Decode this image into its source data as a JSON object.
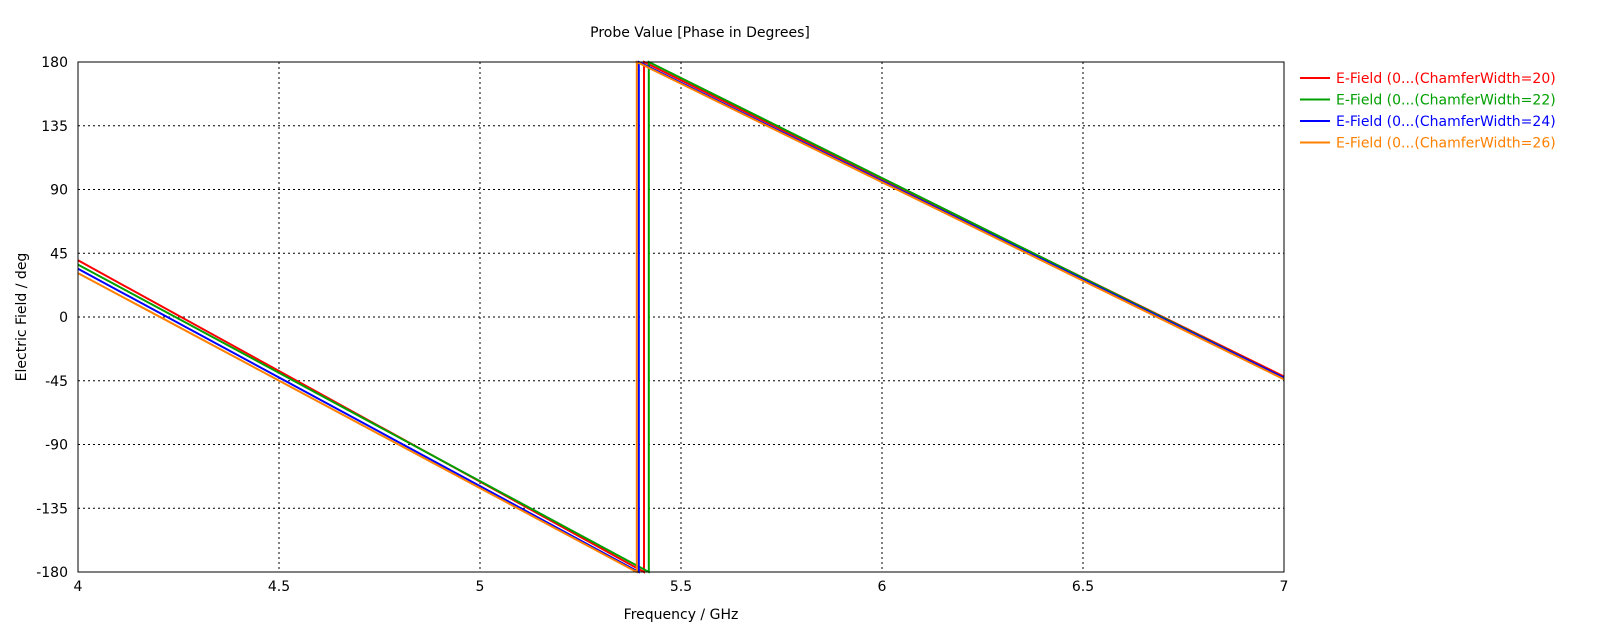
{
  "chart_data": {
    "type": "line",
    "title": "Probe Value [Phase in Degrees]",
    "xlabel": "Frequency / GHz",
    "ylabel": "Electric Field / deg",
    "xlim": [
      4,
      7
    ],
    "ylim": [
      -180,
      180
    ],
    "xticks": [
      4,
      4.5,
      5,
      5.5,
      6,
      6.5,
      7
    ],
    "xtick_labels": [
      "4",
      "4.5",
      "5",
      "5.5",
      "6",
      "6.5",
      "7"
    ],
    "yticks": [
      180,
      135,
      90,
      45,
      0,
      -45,
      -90,
      -135,
      -180
    ],
    "ytick_labels": [
      "180",
      "135",
      "90",
      "45",
      "0",
      "-45",
      "-90",
      "-135",
      "-180"
    ],
    "grid": true,
    "legend_position": "right",
    "series": [
      {
        "name": "E-Field (0...(ChamferWidth=20)",
        "color": "#ff0000",
        "x": [
          4,
          5.408,
          5.408,
          7
        ],
        "y": [
          40,
          -180,
          180,
          -42
        ]
      },
      {
        "name": "E-Field (0...(ChamferWidth=22)",
        "color": "#00a000",
        "x": [
          4,
          5.42,
          5.42,
          7
        ],
        "y": [
          37,
          -180,
          180,
          -43
        ]
      },
      {
        "name": "E-Field (0...(ChamferWidth=24)",
        "color": "#0000ff",
        "x": [
          4,
          5.395,
          5.395,
          7
        ],
        "y": [
          34,
          -180,
          180,
          -43
        ]
      },
      {
        "name": "E-Field (0...(ChamferWidth=26)",
        "color": "#ff8000",
        "x": [
          4,
          5.39,
          5.39,
          7
        ],
        "y": [
          31,
          -180,
          180,
          -44
        ]
      }
    ]
  }
}
